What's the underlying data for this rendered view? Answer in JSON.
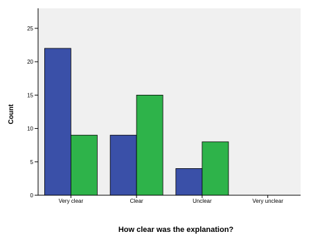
{
  "chart_data": {
    "type": "bar",
    "title": "",
    "xlabel": "How clear was the explanation?",
    "ylabel": "Count",
    "categories": [
      "Very clear",
      "Clear",
      "Unclear",
      "Very unclear"
    ],
    "series": [
      {
        "values": [
          22,
          9,
          4,
          0
        ],
        "color": "#3a50a8"
      },
      {
        "values": [
          9,
          15,
          8,
          0
        ],
        "color": "#2eb34a"
      }
    ],
    "yticks": [
      0,
      5,
      10,
      15,
      20,
      25
    ],
    "ylim": [
      0,
      28
    ],
    "grid": false,
    "legend": "none",
    "plot_background": "#f0f0f0"
  }
}
